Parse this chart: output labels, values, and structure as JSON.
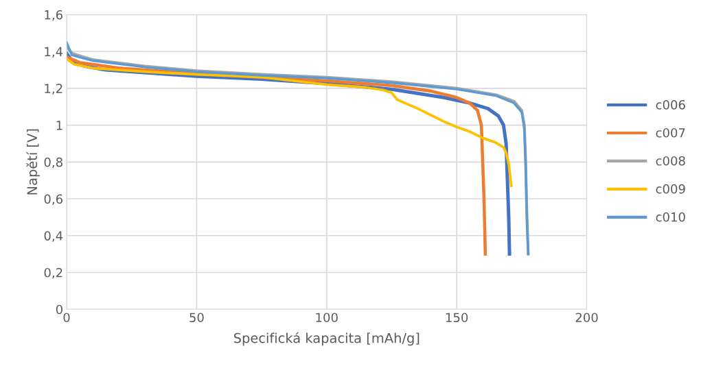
{
  "chart_data": {
    "type": "line",
    "xlabel": "Specifická kapacita [mAh/g]",
    "ylabel": "Napětí [V]",
    "xlim": [
      0,
      200
    ],
    "xticks": [
      0,
      50,
      100,
      150,
      200
    ],
    "ylim": [
      0,
      1.6
    ],
    "yticks": [
      {
        "value": 0,
        "label": "0"
      },
      {
        "value": 0.2,
        "label": "0,2"
      },
      {
        "value": 0.4,
        "label": "0,4"
      },
      {
        "value": 0.6,
        "label": "0,6"
      },
      {
        "value": 0.8,
        "label": "0,8"
      },
      {
        "value": 1,
        "label": "1"
      },
      {
        "value": 1.2,
        "label": "1,2"
      },
      {
        "value": 1.4,
        "label": "1,4"
      },
      {
        "value": 1.6,
        "label": "1,6"
      }
    ],
    "grid": true,
    "legend": "right",
    "marker": "none",
    "line_style": "solid",
    "series": [
      {
        "name": "c006",
        "color": "#4472c4",
        "x": [
          0,
          2,
          7,
          15,
          30,
          50,
          75,
          100,
          125,
          145,
          155,
          162,
          166,
          168,
          169,
          169.5,
          170,
          170.3
        ],
        "values": [
          1.39,
          1.35,
          1.32,
          1.3,
          1.285,
          1.265,
          1.25,
          1.225,
          1.195,
          1.15,
          1.12,
          1.09,
          1.05,
          1.0,
          0.9,
          0.7,
          0.5,
          0.3
        ]
      },
      {
        "name": "c007",
        "color": "#ed7d31",
        "x": [
          0,
          5,
          20,
          50,
          75,
          100,
          125,
          140,
          150,
          155,
          158,
          159.5,
          160,
          160.5,
          161
        ],
        "values": [
          1.37,
          1.34,
          1.31,
          1.28,
          1.26,
          1.24,
          1.215,
          1.185,
          1.15,
          1.12,
          1.08,
          1.0,
          0.8,
          0.6,
          0.3
        ]
      },
      {
        "name": "c008",
        "color": "#a5a5a5",
        "x": [
          0,
          2,
          10,
          30,
          50,
          75,
          100,
          125,
          150,
          165,
          172,
          175,
          176,
          176.5,
          177,
          177.5
        ],
        "values": [
          1.43,
          1.39,
          1.355,
          1.32,
          1.295,
          1.275,
          1.26,
          1.235,
          1.2,
          1.165,
          1.13,
          1.08,
          1.0,
          0.8,
          0.5,
          0.3
        ]
      },
      {
        "name": "c009",
        "color": "#ffc000",
        "x": [
          0,
          3,
          10,
          30,
          50,
          75,
          100,
          115,
          122,
          125,
          127,
          130,
          135,
          140,
          145,
          150,
          155,
          160,
          165,
          168,
          169,
          170,
          171
        ],
        "values": [
          1.36,
          1.33,
          1.31,
          1.29,
          1.275,
          1.26,
          1.22,
          1.205,
          1.19,
          1.175,
          1.14,
          1.12,
          1.09,
          1.055,
          1.02,
          0.99,
          0.965,
          0.93,
          0.905,
          0.88,
          0.85,
          0.79,
          0.67
        ]
      },
      {
        "name": "c010",
        "color": "#5b9bd5",
        "x": [
          0,
          2,
          10,
          30,
          50,
          75,
          100,
          125,
          150,
          165,
          172,
          175,
          176,
          176.5,
          177,
          177.5
        ],
        "values": [
          1.45,
          1.38,
          1.35,
          1.315,
          1.29,
          1.27,
          1.255,
          1.23,
          1.195,
          1.16,
          1.12,
          1.07,
          0.98,
          0.8,
          0.5,
          0.3
        ]
      }
    ]
  }
}
